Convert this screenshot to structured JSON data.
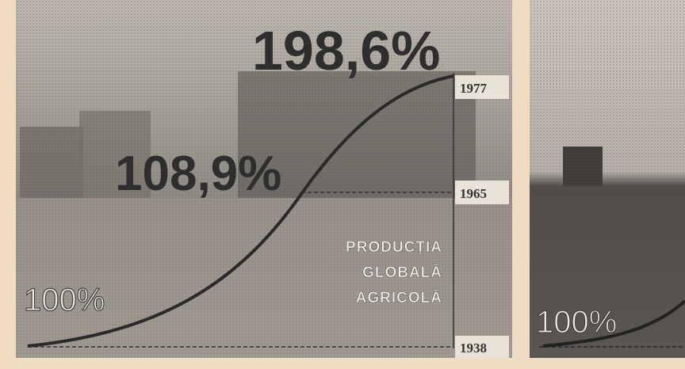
{
  "infographic": {
    "levels": [
      {
        "year": "1977",
        "label": "198,6%"
      },
      {
        "year": "1965",
        "label": "108,9%"
      },
      {
        "year": "1938",
        "label": "100%"
      }
    ],
    "caption": [
      "PRODUCȚIA",
      "GLOBALĂ",
      "AGRICOLĂ"
    ],
    "second_panel_label": "100%"
  }
}
